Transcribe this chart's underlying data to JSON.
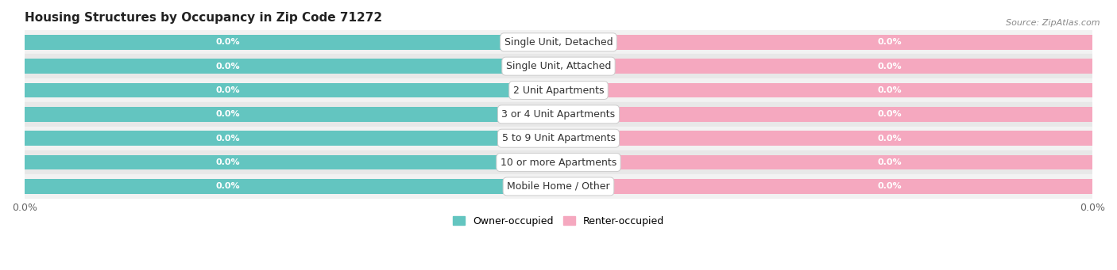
{
  "title": "Housing Structures by Occupancy in Zip Code 71272",
  "source": "Source: ZipAtlas.com",
  "categories": [
    "Single Unit, Detached",
    "Single Unit, Attached",
    "2 Unit Apartments",
    "3 or 4 Unit Apartments",
    "5 to 9 Unit Apartments",
    "10 or more Apartments",
    "Mobile Home / Other"
  ],
  "owner_values": [
    0.0,
    0.0,
    0.0,
    0.0,
    0.0,
    0.0,
    0.0
  ],
  "renter_values": [
    0.0,
    0.0,
    0.0,
    0.0,
    0.0,
    0.0,
    0.0
  ],
  "owner_color": "#63C5C0",
  "renter_color": "#F5A8BF",
  "row_bg_colors": [
    "#F2F2F2",
    "#E8E8E8"
  ],
  "title_fontsize": 11,
  "source_fontsize": 8,
  "value_fontsize": 8,
  "category_fontsize": 9,
  "xlim": [
    -1.0,
    1.0
  ],
  "bar_height": 0.62,
  "background_color": "#FFFFFF",
  "legend_labels": [
    "Owner-occupied",
    "Renter-occupied"
  ]
}
